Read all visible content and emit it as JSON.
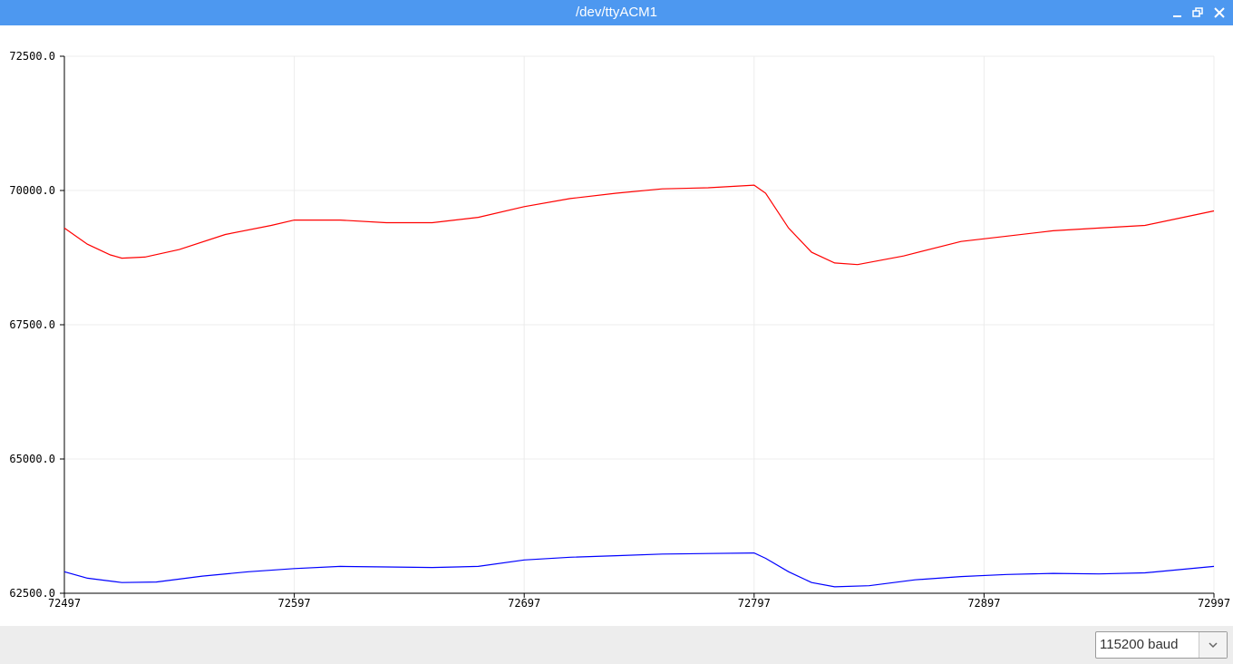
{
  "window": {
    "title": "/dev/ttyACM1",
    "controls": [
      "minimize",
      "maximize",
      "close"
    ]
  },
  "legend": {
    "series_colors": [
      "#0000ff",
      "#ff0000"
    ]
  },
  "footer": {
    "baud_rate": "115200 baud"
  },
  "chart_data": {
    "type": "line",
    "grid": true,
    "legend_position": "top-right",
    "xlim": [
      72497,
      72997
    ],
    "ylim": [
      62500,
      72500
    ],
    "x_ticks": [
      "72497",
      "72597",
      "72697",
      "72797",
      "72897",
      "72997"
    ],
    "y_ticks": [
      "72500.0",
      "70000.0",
      "67500.0",
      "65000.0",
      "62500.0"
    ],
    "series": [
      {
        "color": "#ff0000",
        "points": [
          [
            72497,
            69300
          ],
          [
            72507,
            69000
          ],
          [
            72517,
            68800
          ],
          [
            72522,
            68740
          ],
          [
            72532,
            68760
          ],
          [
            72547,
            68900
          ],
          [
            72567,
            69180
          ],
          [
            72587,
            69350
          ],
          [
            72597,
            69450
          ],
          [
            72617,
            69450
          ],
          [
            72637,
            69400
          ],
          [
            72657,
            69400
          ],
          [
            72677,
            69500
          ],
          [
            72697,
            69700
          ],
          [
            72717,
            69850
          ],
          [
            72737,
            69950
          ],
          [
            72757,
            70030
          ],
          [
            72777,
            70050
          ],
          [
            72797,
            70100
          ],
          [
            72802,
            69950
          ],
          [
            72812,
            69300
          ],
          [
            72822,
            68850
          ],
          [
            72832,
            68650
          ],
          [
            72842,
            68620
          ],
          [
            72862,
            68780
          ],
          [
            72887,
            69050
          ],
          [
            72907,
            69150
          ],
          [
            72927,
            69250
          ],
          [
            72947,
            69300
          ],
          [
            72967,
            69350
          ],
          [
            72997,
            69620
          ]
        ]
      },
      {
        "color": "#0000ff",
        "points": [
          [
            72497,
            62900
          ],
          [
            72507,
            62780
          ],
          [
            72522,
            62700
          ],
          [
            72537,
            62710
          ],
          [
            72557,
            62820
          ],
          [
            72577,
            62900
          ],
          [
            72597,
            62960
          ],
          [
            72617,
            63000
          ],
          [
            72637,
            62990
          ],
          [
            72657,
            62980
          ],
          [
            72677,
            63000
          ],
          [
            72697,
            63120
          ],
          [
            72717,
            63170
          ],
          [
            72737,
            63200
          ],
          [
            72757,
            63230
          ],
          [
            72777,
            63240
          ],
          [
            72797,
            63250
          ],
          [
            72802,
            63150
          ],
          [
            72812,
            62900
          ],
          [
            72822,
            62700
          ],
          [
            72832,
            62620
          ],
          [
            72847,
            62640
          ],
          [
            72867,
            62750
          ],
          [
            72887,
            62810
          ],
          [
            72907,
            62850
          ],
          [
            72927,
            62870
          ],
          [
            72947,
            62860
          ],
          [
            72967,
            62880
          ],
          [
            72997,
            63000
          ]
        ]
      }
    ]
  }
}
